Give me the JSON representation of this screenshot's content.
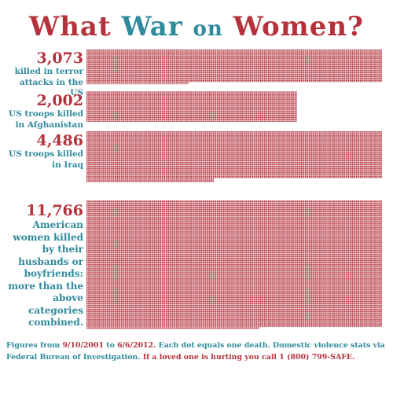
{
  "title": {
    "word1": "What",
    "word2": "War",
    "word3": "on",
    "word4": "Women?"
  },
  "chart_data": {
    "type": "bar",
    "title": "What War on Women?",
    "unit": "Each dot equals one death.",
    "categories": [
      "killed in terror attacks in the US",
      "US troops killed in Afghanistan",
      "US troops killed in Iraq",
      "American women killed by their husbands or boyfriends: more than the above categories combined."
    ],
    "values": [
      3073,
      2002,
      4486,
      11766
    ],
    "labels": [
      "3,073",
      "2,002",
      "4,486",
      "11,766"
    ],
    "colors": {
      "dot": "#b5323c",
      "accent_teal": "#2f8a9c",
      "accent_red": "#b5323c"
    }
  },
  "footer": {
    "line1_a": "Figures from",
    "line1_b": "9/10/2001",
    "line1_c": "to",
    "line1_d": "6/6/2012.",
    "line1_e": "Each dot equals one death. Domestic violence stats",
    "line2_a": "via Federal Bureau of Investigation.",
    "line2_b": "If a loved one is hurting you call 1 (800) 799-SAFE."
  }
}
